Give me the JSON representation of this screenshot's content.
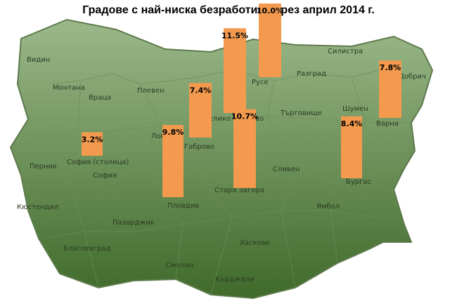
{
  "chart_data": {
    "type": "bar",
    "title": "Градове с най-ниска безработица през април 2014 г.",
    "categories": [
      "София (столица)",
      "Пловдив",
      "Габрово",
      "Велико Търново",
      "Стара Загора",
      "Русе",
      "Бургас",
      "Варна"
    ],
    "values": [
      3.2,
      9.8,
      7.4,
      11.5,
      10.7,
      10.0,
      8.4,
      7.8
    ],
    "value_labels": [
      "3.2%",
      "9.8%",
      "7.4%",
      "11.5%",
      "10.7%",
      "10.0%",
      "8.4%",
      "7.8%"
    ],
    "ylim": [
      0,
      12
    ],
    "bar_color": "#f39a4f",
    "xlabel": "",
    "ylabel": ""
  },
  "map": {
    "fill_top": "#9bb88a",
    "fill_bottom": "#3f6a2a",
    "region_labels": [
      "Видин",
      "Монтана",
      "Враца",
      "Плевен",
      "Ловеч",
      "Габрово",
      "Велико Търново",
      "Русе",
      "Разград",
      "Силистра",
      "Добрич",
      "Шумен",
      "Търговище",
      "Варна",
      "Бургас",
      "Ямбол",
      "Сливен",
      "Стара Загора",
      "Хасково",
      "Кърджали",
      "Смолян",
      "Пловдив",
      "Пазарджик",
      "Благоевград",
      "Кюстендил",
      "Перник",
      "София (столица)",
      "София"
    ]
  }
}
